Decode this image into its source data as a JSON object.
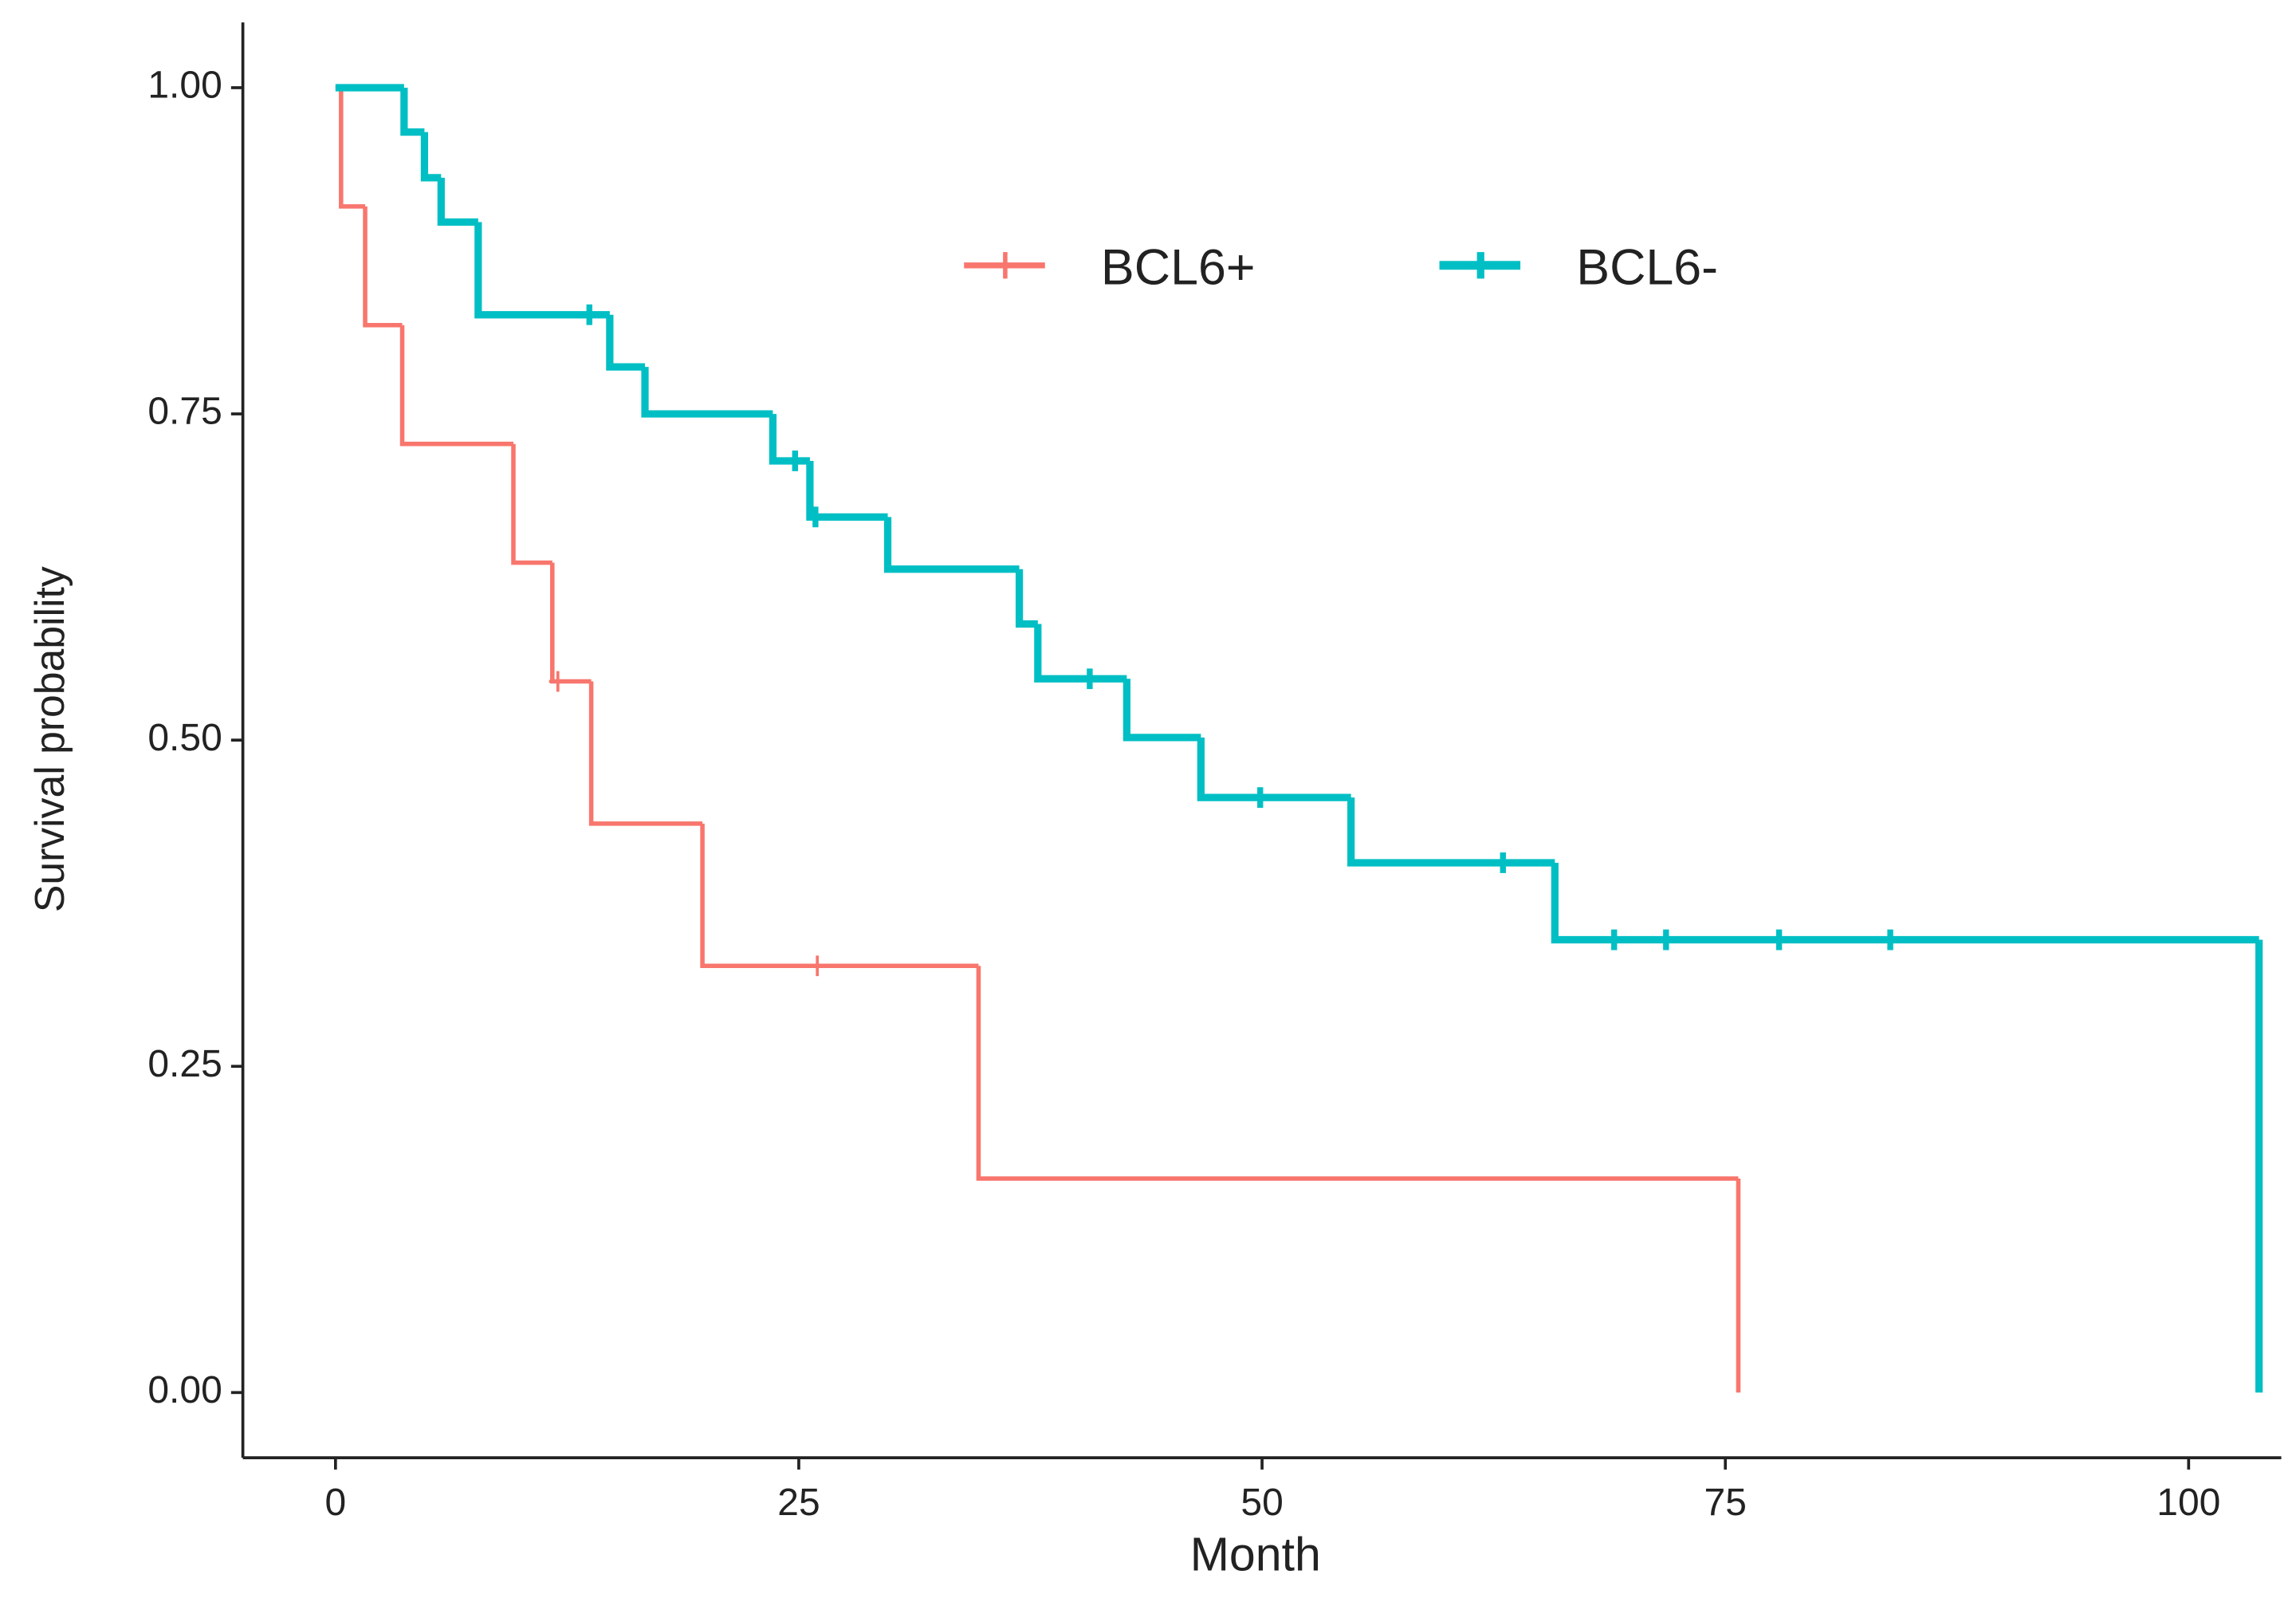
{
  "chart_data": {
    "type": "step",
    "xlabel": "Month",
    "ylabel": "Survival probability",
    "xlim": [
      -5,
      105
    ],
    "xticks": [
      0,
      25,
      50,
      75,
      100
    ],
    "ylim": [
      -0.05,
      1.05
    ],
    "yticks": [
      {
        "value": 0,
        "label": "0.00"
      },
      {
        "value": 0.25,
        "label": "0.25"
      },
      {
        "value": 0.5,
        "label": "0.50"
      },
      {
        "value": 0.75,
        "label": "0.75"
      },
      {
        "value": 1,
        "label": "1.00"
      }
    ],
    "grid": false,
    "legend": "top",
    "series": [
      {
        "name": "BCL6+",
        "color": "#F8766D",
        "x": [
          0,
          0.3,
          1.6,
          3.6,
          9.6,
          11.7,
          13.8,
          19.8,
          34.7,
          75.7
        ],
        "values": [
          1,
          0.909,
          0.818,
          0.727,
          0.636,
          0.545,
          0.436,
          0.327,
          0.164,
          0
        ],
        "censor_x": [
          12,
          26
        ],
        "censor_values": [
          0.545,
          0.327
        ]
      },
      {
        "name": "BCL6-",
        "color": "#00BFC4",
        "x": [
          0,
          3.7,
          4.8,
          5.7,
          7.7,
          14.8,
          16.7,
          23.6,
          25.6,
          29.8,
          36.9,
          37.9,
          42.7,
          46.7,
          54.8,
          65.8,
          103.8
        ],
        "values": [
          1,
          0.966,
          0.931,
          0.897,
          0.826,
          0.786,
          0.75,
          0.714,
          0.671,
          0.631,
          0.589,
          0.547,
          0.502,
          0.456,
          0.406,
          0.347,
          0
        ],
        "censor_x": [
          13.7,
          24.8,
          25.9,
          40.7,
          49.9,
          63,
          69,
          71.8,
          77.9,
          83.9
        ],
        "censor_values": [
          0.826,
          0.714,
          0.671,
          0.547,
          0.456,
          0.406,
          0.347,
          0.347,
          0.347,
          0.347
        ]
      }
    ]
  }
}
